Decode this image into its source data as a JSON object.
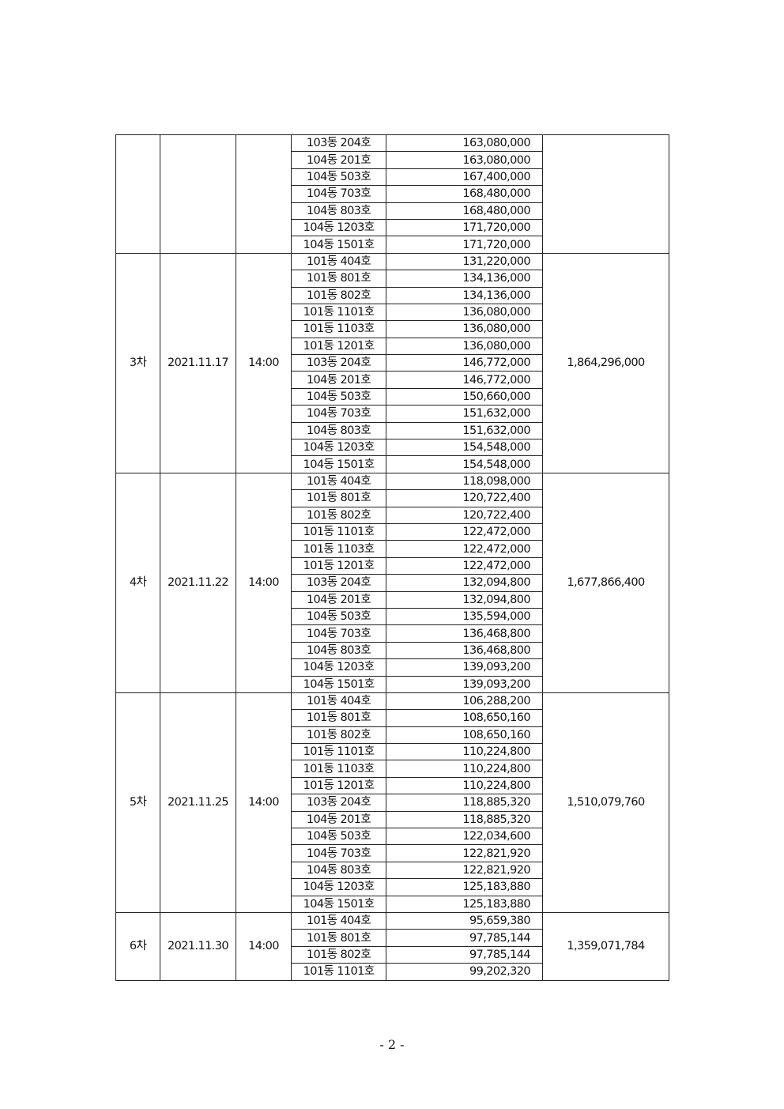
{
  "groups": [
    {
      "round": "",
      "date": "",
      "time": "",
      "total": "",
      "units": [
        [
          "103동  204호",
          "163,080,000"
        ],
        [
          "104동  201호",
          "163,080,000"
        ],
        [
          "104동  503호",
          "167,400,000"
        ],
        [
          "104동  703호",
          "168,480,000"
        ],
        [
          "104동  803호",
          "168,480,000"
        ],
        [
          "104동  1203호",
          "171,720,000"
        ],
        [
          "104동  1501호",
          "171,720,000"
        ]
      ]
    },
    {
      "round": "3차",
      "date": "2021.11.17",
      "time": "14:00",
      "total": "1,864,296,000",
      "units": [
        [
          "101동  404호",
          "131,220,000"
        ],
        [
          "101동  801호",
          "134,136,000"
        ],
        [
          "101동  802호",
          "134,136,000"
        ],
        [
          "101동  1101호",
          "136,080,000"
        ],
        [
          "101동  1103호",
          "136,080,000"
        ],
        [
          "101동  1201호",
          "136,080,000"
        ],
        [
          "103동  204호",
          "146,772,000"
        ],
        [
          "104동  201호",
          "146,772,000"
        ],
        [
          "104동  503호",
          "150,660,000"
        ],
        [
          "104동  703호",
          "151,632,000"
        ],
        [
          "104동  803호",
          "151,632,000"
        ],
        [
          "104동  1203호",
          "154,548,000"
        ],
        [
          "104동  1501호",
          "154,548,000"
        ]
      ]
    },
    {
      "round": "4차",
      "date": "2021.11.22",
      "time": "14:00",
      "total": "1,677,866,400",
      "units": [
        [
          "101동  404호",
          "118,098,000"
        ],
        [
          "101동  801호",
          "120,722,400"
        ],
        [
          "101동  802호",
          "120,722,400"
        ],
        [
          "101동  1101호",
          "122,472,000"
        ],
        [
          "101동  1103호",
          "122,472,000"
        ],
        [
          "101동  1201호",
          "122,472,000"
        ],
        [
          "103동  204호",
          "132,094,800"
        ],
        [
          "104동  201호",
          "132,094,800"
        ],
        [
          "104동  503호",
          "135,594,000"
        ],
        [
          "104동  703호",
          "136,468,800"
        ],
        [
          "104동  803호",
          "136,468,800"
        ],
        [
          "104동  1203호",
          "139,093,200"
        ],
        [
          "104동  1501호",
          "139,093,200"
        ]
      ]
    },
    {
      "round": "5차",
      "date": "2021.11.25",
      "time": "14:00",
      "total": "1,510,079,760",
      "units": [
        [
          "101동  404호",
          "106,288,200"
        ],
        [
          "101동  801호",
          "108,650,160"
        ],
        [
          "101동  802호",
          "108,650,160"
        ],
        [
          "101동  1101호",
          "110,224,800"
        ],
        [
          "101동  1103호",
          "110,224,800"
        ],
        [
          "101동  1201호",
          "110,224,800"
        ],
        [
          "103동  204호",
          "118,885,320"
        ],
        [
          "104동  201호",
          "118,885,320"
        ],
        [
          "104동  503호",
          "122,034,600"
        ],
        [
          "104동  703호",
          "122,821,920"
        ],
        [
          "104동  803호",
          "122,821,920"
        ],
        [
          "104동  1203호",
          "125,183,880"
        ],
        [
          "104동  1501호",
          "125,183,880"
        ]
      ]
    },
    {
      "round": "6차",
      "date": "2021.11.30",
      "time": "14:00",
      "total": "1,359,071,784",
      "units": [
        [
          "101동  404호",
          "95,659,380"
        ],
        [
          "101동  801호",
          "97,785,144"
        ],
        [
          "101동  802호",
          "97,785,144"
        ],
        [
          "101동  1101호",
          "99,202,320"
        ]
      ]
    }
  ],
  "footer": {
    "page_number": "- 2 -"
  }
}
